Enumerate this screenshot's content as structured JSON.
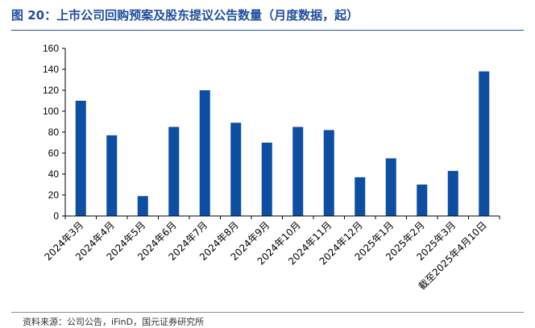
{
  "header": {
    "title": "图 20：上市公司回购预案及股东提议公告数量（月度数据，起）"
  },
  "footer": {
    "source": "资料来源：公司公告，iFinD，国元证券研究所"
  },
  "colors": {
    "bar": "#0b4ea2",
    "title": "#1f4e9e",
    "axis": "#000000"
  },
  "chart_data": {
    "type": "bar",
    "title": "图 20：上市公司回购预案及股东提议公告数量（月度数据，起）",
    "categories": [
      "2024年3月",
      "2024年4月",
      "2024年5月",
      "2024年6月",
      "2024年7月",
      "2024年8月",
      "2024年9月",
      "2024年10月",
      "2024年11月",
      "2024年12月",
      "2025年1月",
      "2025年2月",
      "2025年3月",
      "截至2025年4月10日"
    ],
    "values": [
      110,
      77,
      19,
      85,
      120,
      89,
      70,
      85,
      82,
      37,
      55,
      30,
      43,
      138
    ],
    "ylim": [
      0,
      160
    ],
    "yticks": [
      0,
      20,
      40,
      60,
      80,
      100,
      120,
      140,
      160
    ],
    "xlabel": "",
    "ylabel": "",
    "grid": false,
    "legend": false
  }
}
